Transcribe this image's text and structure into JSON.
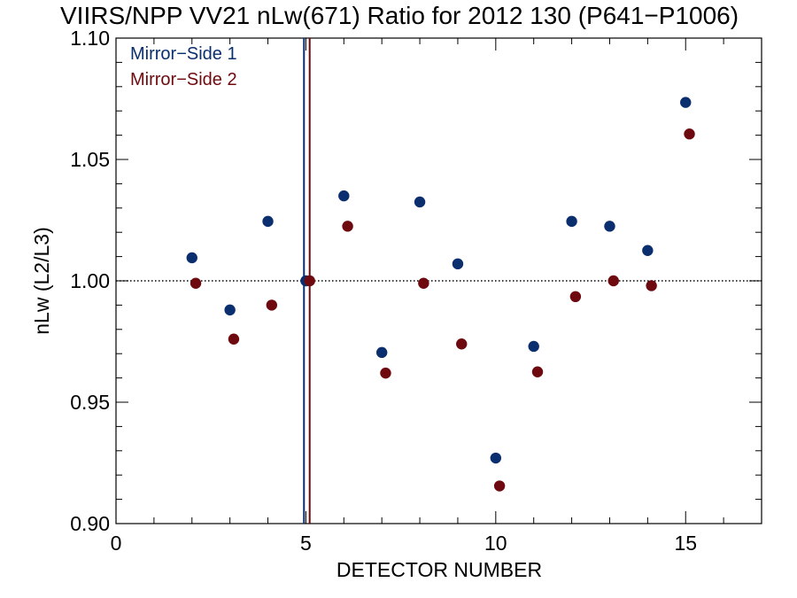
{
  "chart_data": {
    "type": "scatter",
    "title": "VIIRS/NPP VV21 nLw(671) Ratio for 2012 130 (P641−P1006)",
    "xlabel": "DETECTOR NUMBER",
    "ylabel": "nLw (L2/L3)",
    "xlim": [
      0,
      17
    ],
    "ylim": [
      0.9,
      1.1
    ],
    "x_ticks": [
      "0",
      "5",
      "10",
      "15"
    ],
    "x_tick_values": [
      0,
      5,
      10,
      15
    ],
    "y_ticks": [
      "0.90",
      "0.95",
      "1.00",
      "1.05",
      "1.10"
    ],
    "y_tick_values": [
      0.9,
      0.95,
      1.0,
      1.05,
      1.1
    ],
    "reference_line_y": 1.0,
    "reference_line_style": "dotted",
    "legend_position": "top-left",
    "series": [
      {
        "name": "Mirror−Side 1",
        "color": "#0b2f6e",
        "marker_line_x": 4.95,
        "x": [
          2,
          3,
          4,
          5,
          6,
          7,
          8,
          9,
          10,
          11,
          12,
          13,
          14,
          15
        ],
        "y": [
          1.0095,
          0.988,
          1.0245,
          1.0,
          1.035,
          0.9705,
          1.0325,
          1.007,
          0.927,
          0.973,
          1.0245,
          1.0225,
          1.0125,
          1.0735
        ]
      },
      {
        "name": "Mirror−Side 2",
        "color": "#6e0a0f",
        "marker_line_x": 5.1,
        "x": [
          2.1,
          3.1,
          4.1,
          5.1,
          6.1,
          7.1,
          8.1,
          9.1,
          10.1,
          11.1,
          12.1,
          13.1,
          14.1,
          15.1
        ],
        "y": [
          0.999,
          0.976,
          0.99,
          1.0,
          1.0225,
          0.962,
          0.999,
          0.974,
          0.9155,
          0.9625,
          0.9935,
          1.0,
          0.998,
          1.0605
        ]
      }
    ]
  }
}
